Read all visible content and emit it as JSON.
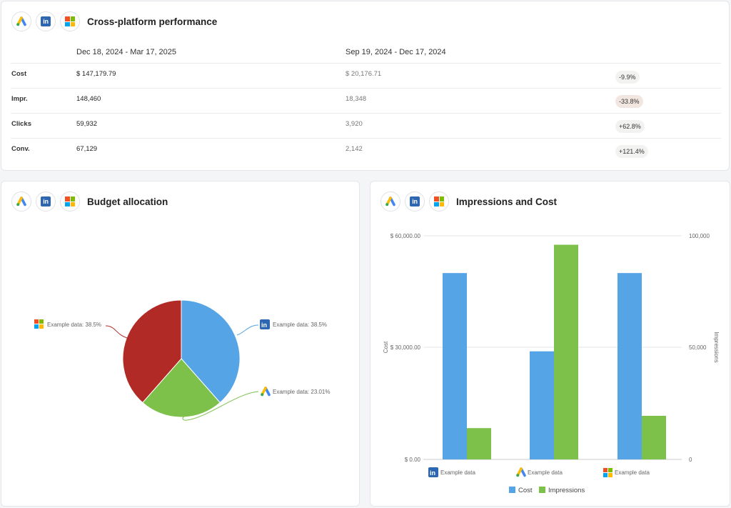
{
  "performance": {
    "title": "Cross-platform performance",
    "period_current": "Dec 18, 2024 - Mar 17, 2025",
    "period_previous": "Sep 19, 2024 - Dec 17, 2024",
    "rows": [
      {
        "metric": "Cost",
        "current": "$ 147,179.79",
        "previous": "$ 20,176.71",
        "change": "-9.9%",
        "change_tone": "neutral"
      },
      {
        "metric": "Impr.",
        "current": "148,460",
        "previous": "18,348",
        "change": "-33.8%",
        "change_tone": "negative"
      },
      {
        "metric": "Clicks",
        "current": "59,932",
        "previous": "3,920",
        "change": "+62.8%",
        "change_tone": "neutral"
      },
      {
        "metric": "Conv.",
        "current": "67,129",
        "previous": "2,142",
        "change": "+121.4%",
        "change_tone": "neutral"
      }
    ]
  },
  "platform_icons": [
    "google-ads-icon",
    "linkedin-icon",
    "microsoft-ads-icon"
  ],
  "budget": {
    "title": "Budget allocation",
    "labels": {
      "microsoft": "Example data:  38.5%",
      "linkedin": "Example data:  38.5%",
      "google": "Example data:  23.01%"
    }
  },
  "impressions_cost": {
    "title": "Impressions and Cost",
    "y_left_ticks": [
      "$ 60,000.00",
      "$ 30,000.00",
      "$ 0.00"
    ],
    "y_right_ticks": [
      "100,000",
      "50,000",
      "0"
    ],
    "y_left_label": "Cost",
    "y_right_label": "Impressions",
    "category_labels": [
      "Example data",
      "Example data",
      "Example data"
    ],
    "legend": {
      "cost": "Cost",
      "impressions": "Impressions"
    }
  },
  "colors": {
    "cost": "#54a4e6",
    "impressions": "#7dc14b",
    "pie_linkedin": "#54a4e6",
    "pie_google": "#7dc14b",
    "pie_microsoft": "#b22a25",
    "negative_badge": "#f2e6e0"
  },
  "chart_data": [
    {
      "type": "pie",
      "title": "Budget allocation",
      "slices": [
        {
          "platform": "linkedin",
          "label": "Example data",
          "value": 38.5
        },
        {
          "platform": "google-ads",
          "label": "Example data",
          "value": 23.01
        },
        {
          "platform": "microsoft-ads",
          "label": "Example data",
          "value": 38.5
        }
      ]
    },
    {
      "type": "bar",
      "title": "Impressions and Cost",
      "categories": [
        "Example data",
        "Example data",
        "Example data"
      ],
      "category_platforms": [
        "linkedin",
        "google-ads",
        "microsoft-ads"
      ],
      "series": [
        {
          "name": "Cost",
          "axis": "left",
          "values": [
            50000,
            29000,
            50000
          ]
        },
        {
          "name": "Impressions",
          "axis": "right",
          "values": [
            14000,
            96000,
            19500
          ]
        }
      ],
      "ylim_left": [
        0,
        60000
      ],
      "ylim_right": [
        0,
        100000
      ],
      "ylabel_left": "Cost",
      "ylabel_right": "Impressions",
      "grid": true,
      "legend_position": "bottom"
    }
  ]
}
